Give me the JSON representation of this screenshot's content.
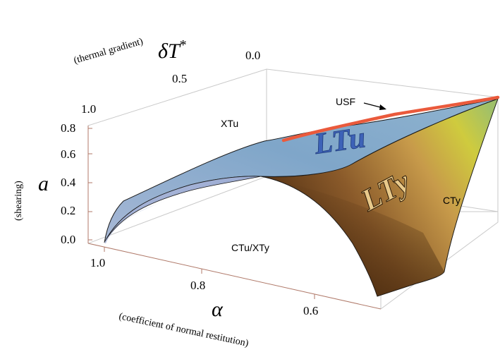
{
  "axes": {
    "deltaT": {
      "symbol": "δT",
      "superscript": "*",
      "description": "(thermal gradient)",
      "ticks": [
        "0.0",
        "0.5",
        "1.0"
      ]
    },
    "a": {
      "symbol": "a",
      "description": "(shearing)",
      "ticks": [
        "0.8",
        "0.6",
        "0.4",
        "0.2",
        "0.0"
      ]
    },
    "alpha": {
      "symbol": "α",
      "description": "(coefficient of normal restitution)",
      "ticks": [
        "1.0",
        "0.8",
        "0.6"
      ]
    }
  },
  "regions": {
    "xtu": "XTu",
    "cty": "CTy",
    "ctu_xty": "CTu/XTy",
    "usf": "USF"
  },
  "surface_labels": {
    "ltu": "LTu",
    "lty": "LTy"
  },
  "colors": {
    "usf_curve": "#ea5a3c",
    "upper_surface": "#7fa6c9",
    "lower_surface_dark": "#5a3614",
    "lower_surface_light": "#d8cc4a",
    "box": "#c9c9c9",
    "axis": "#b07a6a"
  }
}
